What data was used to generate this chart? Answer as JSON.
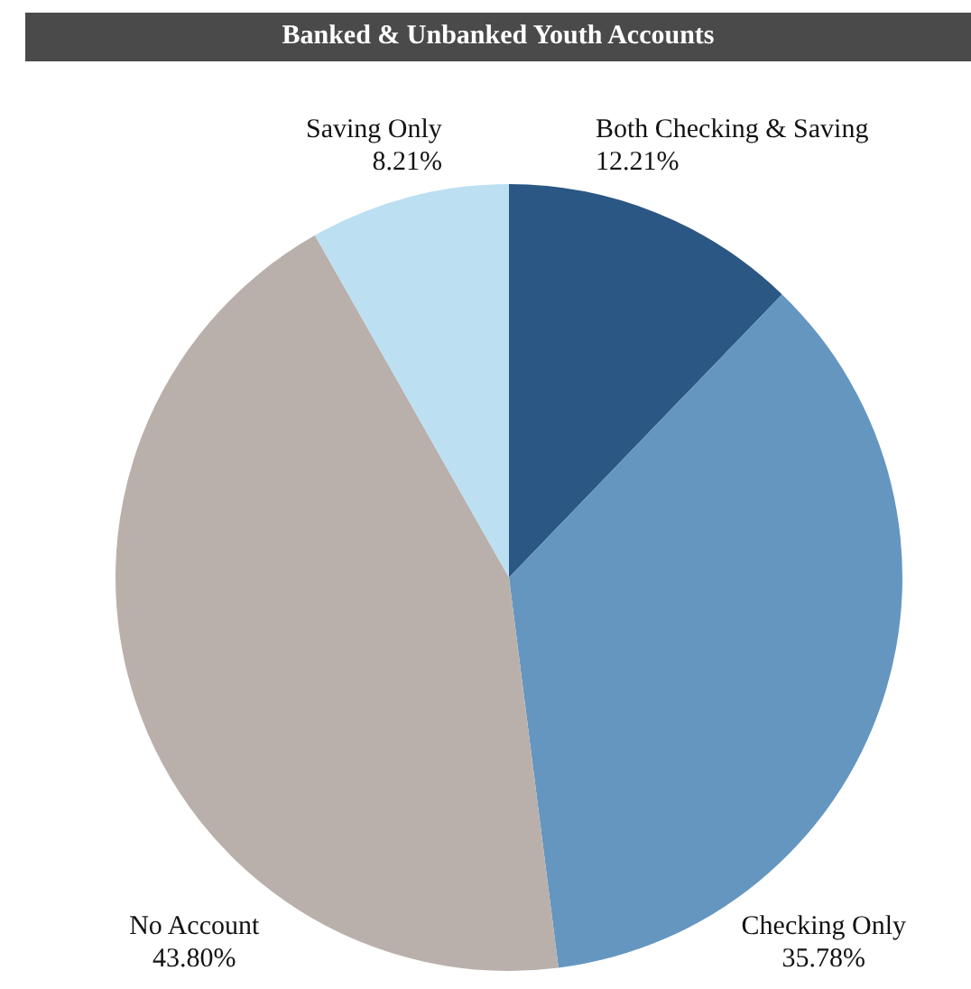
{
  "chart_data": {
    "type": "pie",
    "title": "Banked & Unbanked Youth Accounts",
    "categories": [
      "Both Checking & Saving",
      "Checking Only",
      "No Account",
      "Saving Only"
    ],
    "values": [
      12.21,
      35.78,
      43.8,
      8.21
    ],
    "colors": [
      "#2b5784",
      "#6496c0",
      "#b9b0ab",
      "#bcdff2"
    ],
    "value_labels": [
      "12.21%",
      "35.78%",
      "43.80%",
      "8.21%"
    ],
    "legend": false
  }
}
